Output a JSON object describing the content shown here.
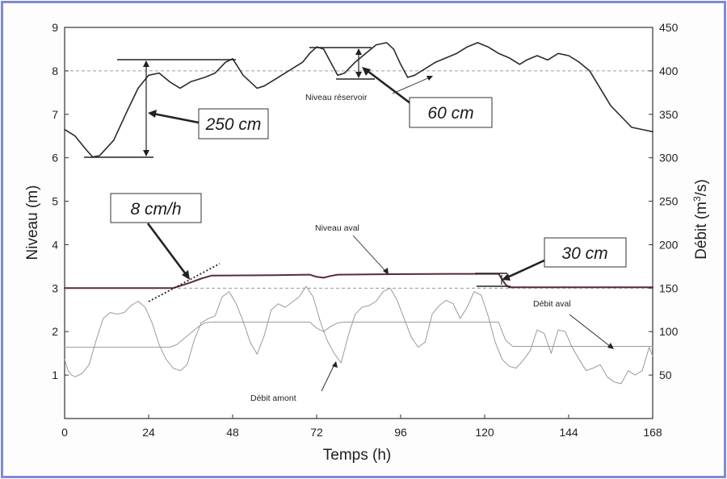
{
  "chart_data": {
    "type": "line",
    "xlabel": "Temps (h)",
    "ylabel": "Niveau (m)",
    "y2label_main": "Débit (m",
    "y2label_sup": "3",
    "y2label_end": "/s)",
    "xlim": [
      0,
      168
    ],
    "ylim": [
      0,
      9
    ],
    "y2lim": [
      0,
      450
    ],
    "xticks": [
      0,
      24,
      48,
      72,
      96,
      120,
      144,
      168
    ],
    "yticks": [
      1,
      2,
      3,
      4,
      5,
      6,
      7,
      8,
      9
    ],
    "y2ticks": [
      50,
      100,
      150,
      200,
      250,
      300,
      350,
      400,
      450
    ],
    "gridlines_y": [
      8,
      3
    ],
    "series": [
      {
        "name": "Niveau réservoir",
        "axis": "left",
        "x": [
          0,
          3,
          6,
          8,
          10,
          14,
          18,
          21,
          24,
          27,
          30,
          33,
          36,
          40,
          43,
          46,
          48,
          51,
          55,
          57,
          60,
          64,
          68,
          70,
          72,
          74,
          76,
          78,
          80,
          83,
          86,
          89,
          92,
          94,
          96,
          98,
          100,
          103,
          106,
          109,
          112,
          115,
          118,
          121,
          124,
          127,
          130,
          132,
          135,
          138,
          141,
          144,
          147,
          150,
          153,
          156,
          159,
          162,
          165,
          168
        ],
        "y": [
          6.65,
          6.5,
          6.2,
          6.02,
          6.05,
          6.4,
          7.1,
          7.6,
          7.9,
          7.95,
          7.75,
          7.6,
          7.75,
          7.85,
          7.95,
          8.2,
          8.28,
          7.9,
          7.6,
          7.65,
          7.8,
          8.0,
          8.2,
          8.4,
          8.55,
          8.5,
          8.2,
          7.9,
          7.95,
          8.2,
          8.4,
          8.6,
          8.65,
          8.5,
          8.15,
          7.85,
          7.9,
          8.05,
          8.2,
          8.3,
          8.4,
          8.55,
          8.65,
          8.55,
          8.4,
          8.3,
          8.15,
          8.25,
          8.35,
          8.25,
          8.4,
          8.35,
          8.2,
          8.0,
          7.6,
          7.2,
          6.95,
          6.7,
          6.65,
          6.6
        ]
      },
      {
        "name": "Niveau aval",
        "axis": "left",
        "x": [
          0,
          31,
          33,
          36,
          39,
          42,
          60,
          70,
          72,
          74,
          76,
          78,
          90,
          110,
          124,
          125,
          126,
          127,
          168
        ],
        "y": [
          3.0,
          3.0,
          3.05,
          3.13,
          3.22,
          3.29,
          3.3,
          3.31,
          3.26,
          3.24,
          3.28,
          3.31,
          3.32,
          3.33,
          3.33,
          3.2,
          3.08,
          3.02,
          3.02
        ]
      },
      {
        "name": "Débit aval",
        "axis": "right",
        "x": [
          0,
          30,
          32,
          35,
          38,
          40,
          42,
          70,
          72,
          74,
          76,
          78,
          80,
          124,
          125,
          126,
          128,
          168
        ],
        "y": [
          82,
          82,
          85,
          95,
          105,
          110,
          111,
          111,
          104,
          100,
          106,
          110,
          111,
          111,
          100,
          90,
          83,
          83
        ]
      },
      {
        "name": "Débit amont",
        "axis": "right",
        "x": [
          0,
          1,
          2,
          3,
          5,
          7,
          9,
          11,
          13,
          15,
          17,
          19,
          21,
          23,
          25,
          27,
          29,
          31,
          33,
          35,
          37,
          39,
          41,
          43,
          45,
          47,
          49,
          51,
          53,
          55,
          57,
          59,
          61,
          63,
          65,
          67,
          69,
          71,
          73,
          75,
          77,
          79,
          81,
          83,
          85,
          87,
          89,
          91,
          93,
          95,
          97,
          99,
          101,
          103,
          105,
          107,
          109,
          111,
          113,
          115,
          117,
          119,
          121,
          123,
          125,
          127,
          129,
          131,
          133,
          135,
          137,
          139,
          141,
          143,
          145,
          147,
          149,
          151,
          153,
          155,
          157,
          159,
          161,
          163,
          165,
          167,
          168
        ],
        "y": [
          68,
          55,
          50,
          48,
          52,
          62,
          90,
          115,
          122,
          120,
          122,
          130,
          135,
          128,
          110,
          85,
          68,
          58,
          55,
          62,
          90,
          110,
          115,
          118,
          140,
          146,
          132,
          112,
          88,
          74,
          95,
          125,
          132,
          128,
          134,
          140,
          152,
          140,
          112,
          90,
          75,
          64,
          95,
          120,
          128,
          130,
          135,
          146,
          150,
          136,
          115,
          94,
          82,
          88,
          120,
          130,
          136,
          132,
          115,
          128,
          146,
          142,
          118,
          88,
          68,
          60,
          58,
          67,
          78,
          102,
          98,
          75,
          102,
          100,
          82,
          68,
          55,
          58,
          62,
          48,
          42,
          40,
          55,
          50,
          55,
          82,
          72
        ]
      }
    ],
    "series_labels": [
      "Niveau réservoir",
      "Niveau aval",
      "Débit aval",
      "Débit amont"
    ],
    "callouts": [
      "250 cm",
      "60 cm",
      "8 cm/h",
      "30 cm"
    ]
  },
  "colors": {
    "page_border": "#7f8ccf",
    "line_main": "#2b2b2b",
    "line_aval": "#5a2a3a",
    "line_flow": "#9a9a9a",
    "grid": "#9a9a9a"
  }
}
